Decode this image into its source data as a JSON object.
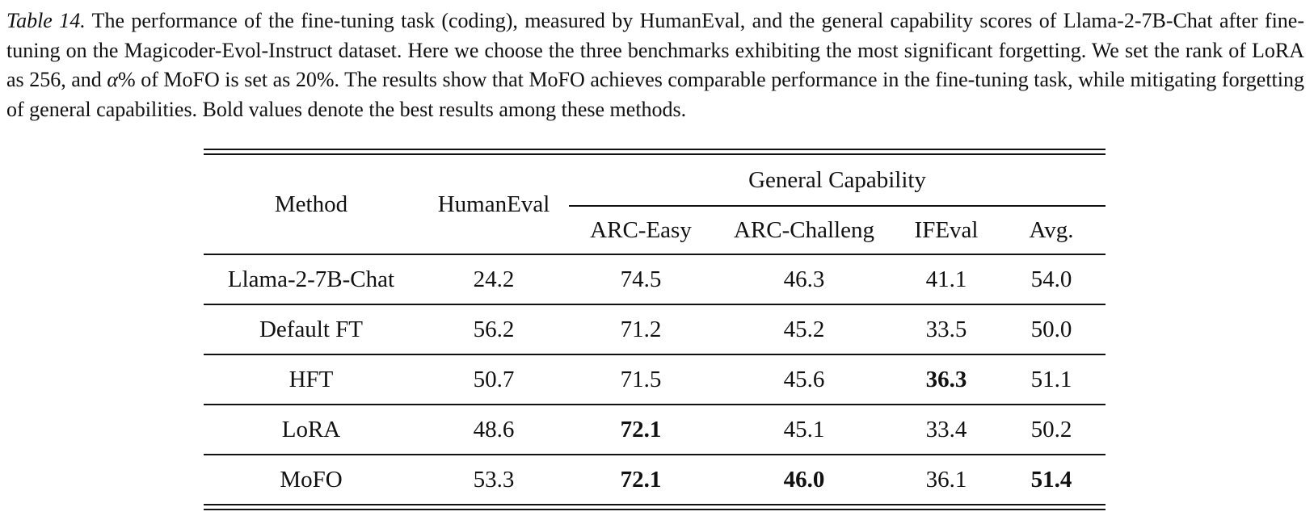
{
  "caption": {
    "label": "Table 14.",
    "text_part1": " The performance of the fine-tuning task (coding), measured by HumanEval, and the general capability scores of Llama-2-7B-Chat after fine-tuning on the Magicoder-Evol-Instruct dataset.  Here we choose the three benchmarks exhibiting the most significant forgetting.  We set the rank of LoRA as 256, and ",
    "alpha": "α",
    "text_part2": "% of MoFO is set as 20%.  The results show that MoFO achieves comparable performance in the fine-tuning task, while mitigating forgetting of general capabilities. Bold values denote the best results among these methods."
  },
  "table": {
    "headers": {
      "method": "Method",
      "humaneval": "HumanEval",
      "group": "General Capability",
      "sub": [
        "ARC-Easy",
        "ARC-Challeng",
        "IFEval",
        "Avg."
      ]
    },
    "rows": [
      {
        "method": "Llama-2-7B-Chat",
        "values": [
          "24.2",
          "74.5",
          "46.3",
          "41.1",
          "54.0"
        ],
        "bold": [
          false,
          false,
          false,
          false,
          false
        ]
      },
      {
        "method": "Default FT",
        "values": [
          "56.2",
          "71.2",
          "45.2",
          "33.5",
          "50.0"
        ],
        "bold": [
          false,
          false,
          false,
          false,
          false
        ]
      },
      {
        "method": "HFT",
        "values": [
          "50.7",
          "71.5",
          "45.6",
          "36.3",
          "51.1"
        ],
        "bold": [
          false,
          false,
          false,
          true,
          false
        ]
      },
      {
        "method": "LoRA",
        "values": [
          "48.6",
          "72.1",
          "45.1",
          "33.4",
          "50.2"
        ],
        "bold": [
          false,
          true,
          false,
          false,
          false
        ]
      },
      {
        "method": "MoFO",
        "values": [
          "53.3",
          "72.1",
          "46.0",
          "36.1",
          "51.4"
        ],
        "bold": [
          false,
          true,
          true,
          false,
          true
        ]
      }
    ]
  }
}
